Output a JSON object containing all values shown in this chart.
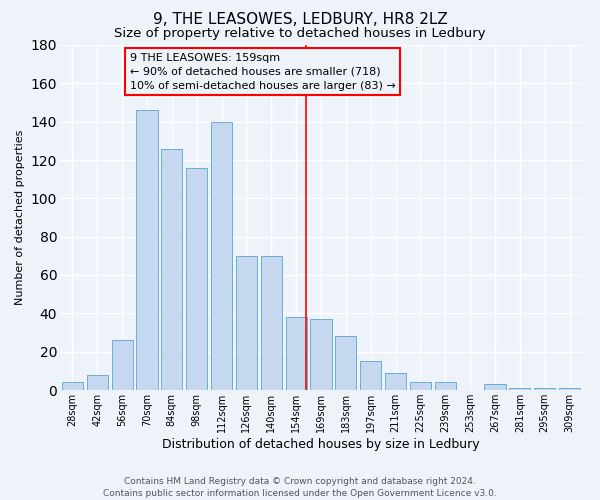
{
  "title": "9, THE LEASOWES, LEDBURY, HR8 2LZ",
  "subtitle": "Size of property relative to detached houses in Ledbury",
  "xlabel": "Distribution of detached houses by size in Ledbury",
  "ylabel": "Number of detached properties",
  "bar_labels": [
    "28sqm",
    "42sqm",
    "56sqm",
    "70sqm",
    "84sqm",
    "98sqm",
    "112sqm",
    "126sqm",
    "140sqm",
    "154sqm",
    "169sqm",
    "183sqm",
    "197sqm",
    "211sqm",
    "225sqm",
    "239sqm",
    "253sqm",
    "267sqm",
    "281sqm",
    "295sqm",
    "309sqm"
  ],
  "bar_values": [
    4,
    8,
    26,
    146,
    126,
    116,
    140,
    70,
    70,
    38,
    37,
    28,
    15,
    9,
    4,
    4,
    0,
    3,
    1,
    1,
    1
  ],
  "bar_color": "#c5d8f0",
  "bar_edge_color": "#6aaed6",
  "vline_x": 9.4,
  "vline_color": "red",
  "ylim": [
    0,
    180
  ],
  "yticks": [
    0,
    20,
    40,
    60,
    80,
    100,
    120,
    140,
    160,
    180
  ],
  "annotation_title": "9 THE LEASOWES: 159sqm",
  "annotation_line1": "← 90% of detached houses are smaller (718)",
  "annotation_line2": "10% of semi-detached houses are larger (83) →",
  "annotation_box_color": "red",
  "footer1": "Contains HM Land Registry data © Crown copyright and database right 2024.",
  "footer2": "Contains public sector information licensed under the Open Government Licence v3.0.",
  "background_color": "#eef2f9",
  "grid_color": "#ffffff",
  "title_fontsize": 11,
  "subtitle_fontsize": 9.5,
  "xlabel_fontsize": 9,
  "ylabel_fontsize": 8,
  "tick_fontsize": 7,
  "footer_fontsize": 6.5,
  "annotation_fontsize": 8
}
